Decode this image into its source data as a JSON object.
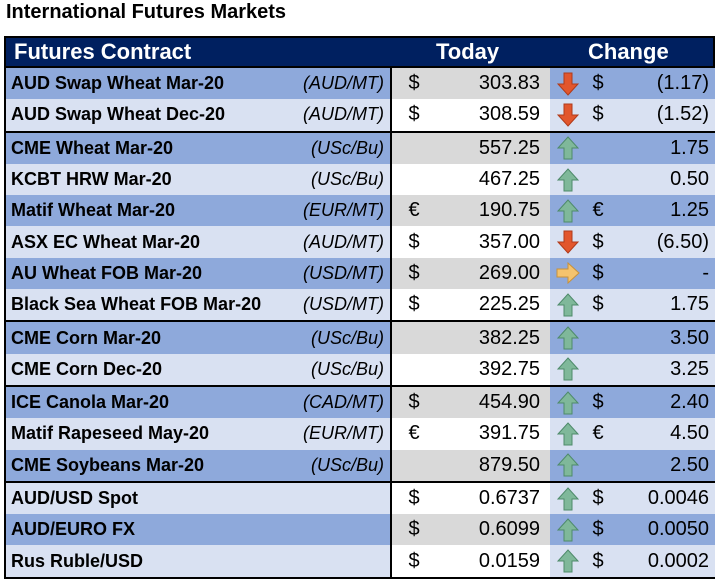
{
  "title": "International Futures Markets",
  "header": {
    "contract": "Futures Contract",
    "today": "Today",
    "change": "Change"
  },
  "rows": [
    {
      "name": "AUD Swap Wheat Mar-20",
      "unit": "(AUD/MT)",
      "cur": "$",
      "val": "303.83",
      "dir": "down",
      "ccur": "$",
      "chg": "(1.17)",
      "shade": "dark",
      "group": false
    },
    {
      "name": "AUD Swap Wheat Dec-20",
      "unit": "(AUD/MT)",
      "cur": "$",
      "val": "308.59",
      "dir": "down",
      "ccur": "$",
      "chg": "(1.52)",
      "shade": "light",
      "group": false
    },
    {
      "name": "CME Wheat Mar-20",
      "unit": "(USc/Bu)",
      "cur": "",
      "val": "557.25",
      "dir": "up",
      "ccur": "",
      "chg": "1.75",
      "shade": "dark",
      "group": true
    },
    {
      "name": "KCBT HRW Mar-20",
      "unit": "(USc/Bu)",
      "cur": "",
      "val": "467.25",
      "dir": "up",
      "ccur": "",
      "chg": "0.50",
      "shade": "light",
      "group": false
    },
    {
      "name": "Matif Wheat Mar-20",
      "unit": "(EUR/MT)",
      "cur": "€",
      "val": "190.75",
      "dir": "up",
      "ccur": "€",
      "chg": "1.25",
      "shade": "dark",
      "group": false
    },
    {
      "name": "ASX EC Wheat Mar-20",
      "unit": "(AUD/MT)",
      "cur": "$",
      "val": "357.00",
      "dir": "down",
      "ccur": "$",
      "chg": "(6.50)",
      "shade": "light",
      "group": false
    },
    {
      "name": "AU Wheat FOB Mar-20",
      "unit": "(USD/MT)",
      "cur": "$",
      "val": "269.00",
      "dir": "flat",
      "ccur": "$",
      "chg": "-",
      "shade": "dark",
      "group": false
    },
    {
      "name": "Black Sea Wheat FOB Mar-20",
      "unit": "(USD/MT)",
      "cur": "$",
      "val": "225.25",
      "dir": "up",
      "ccur": "$",
      "chg": "1.75",
      "shade": "light",
      "group": false
    },
    {
      "name": "CME Corn Mar-20",
      "unit": "(USc/Bu)",
      "cur": "",
      "val": "382.25",
      "dir": "up",
      "ccur": "",
      "chg": "3.50",
      "shade": "dark",
      "group": true
    },
    {
      "name": "CME Corn Dec-20",
      "unit": "(USc/Bu)",
      "cur": "",
      "val": "392.75",
      "dir": "up",
      "ccur": "",
      "chg": "3.25",
      "shade": "light",
      "group": false
    },
    {
      "name": "ICE Canola Mar-20",
      "unit": "(CAD/MT)",
      "cur": "$",
      "val": "454.90",
      "dir": "up",
      "ccur": "$",
      "chg": "2.40",
      "shade": "dark",
      "group": true
    },
    {
      "name": "Matif Rapeseed May-20",
      "unit": "(EUR/MT)",
      "cur": "€",
      "val": "391.75",
      "dir": "up",
      "ccur": "€",
      "chg": "4.50",
      "shade": "light",
      "group": false
    },
    {
      "name": "CME Soybeans Mar-20",
      "unit": "(USc/Bu)",
      "cur": "",
      "val": "879.50",
      "dir": "up",
      "ccur": "",
      "chg": "2.50",
      "shade": "dark",
      "group": false
    },
    {
      "name": "AUD/USD Spot",
      "unit": "",
      "cur": "$",
      "val": "0.6737",
      "dir": "up",
      "ccur": "$",
      "chg": "0.0046",
      "shade": "light",
      "group": true
    },
    {
      "name": "AUD/EURO FX",
      "unit": "",
      "cur": "$",
      "val": "0.6099",
      "dir": "up",
      "ccur": "$",
      "chg": "0.0050",
      "shade": "dark",
      "group": false
    },
    {
      "name": "Rus Ruble/USD",
      "unit": "",
      "cur": "$",
      "val": "0.0159",
      "dir": "up",
      "ccur": "$",
      "chg": "0.0002",
      "shade": "light",
      "group": false
    }
  ],
  "colors": {
    "header": "#002060",
    "dark": "#8EA9DB",
    "light": "#D9E1F2",
    "up": "#548235",
    "down": "#C65911",
    "flat": "#F4B183"
  }
}
